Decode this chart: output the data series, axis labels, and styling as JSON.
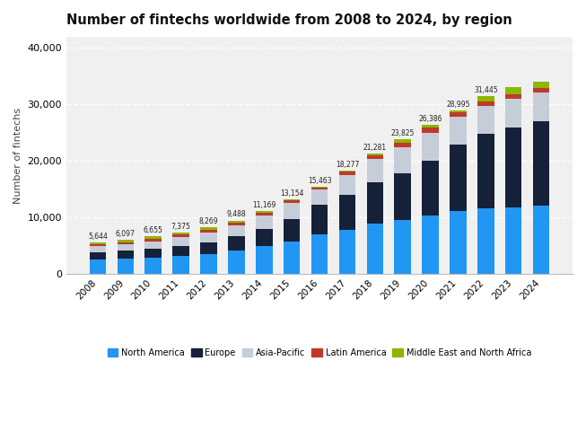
{
  "years": [
    2008,
    2009,
    2010,
    2011,
    2012,
    2013,
    2014,
    2015,
    2016,
    2017,
    2018,
    2019,
    2020,
    2021,
    2022,
    2023,
    2024
  ],
  "totals_labels": [
    "5,644",
    "6,097",
    "6,655",
    "7,375",
    "8,269",
    "9,488",
    "11,169",
    "13,154",
    "15,463",
    "18,277",
    "21,281",
    "23,825",
    "26,386",
    "28,995",
    "31,445",
    null,
    null
  ],
  "north_america": [
    2550,
    2750,
    2900,
    3150,
    3600,
    4100,
    4900,
    5800,
    7000,
    7800,
    9000,
    9500,
    10400,
    11100,
    11600,
    11800,
    12100
  ],
  "europe": [
    1300,
    1400,
    1550,
    1750,
    2050,
    2550,
    3100,
    3900,
    5200,
    6200,
    7300,
    8400,
    9600,
    11800,
    13200,
    14200,
    15000
  ],
  "asia_pacific": [
    1100,
    1150,
    1350,
    1600,
    1700,
    1950,
    2400,
    2850,
    2700,
    3500,
    4000,
    4500,
    5000,
    5000,
    5000,
    5100,
    5100
  ],
  "latin_america": [
    350,
    380,
    450,
    475,
    550,
    550,
    500,
    450,
    360,
    580,
    720,
    800,
    900,
    800,
    750,
    700,
    700
  ],
  "mena": [
    344,
    417,
    405,
    400,
    369,
    338,
    269,
    154,
    203,
    197,
    261,
    625,
    486,
    295,
    895,
    1245,
    1145
  ],
  "colors": {
    "north_america": "#2196f3",
    "europe": "#152039",
    "asia_pacific": "#c5cdd8",
    "latin_america": "#c0392b",
    "mena": "#8db600"
  },
  "title": "Number of fintechs worldwide from 2008 to 2024, by region",
  "ylabel": "Number of fintechs",
  "ylim": [
    0,
    42000
  ],
  "yticks": [
    0,
    10000,
    20000,
    30000,
    40000
  ],
  "legend_labels": [
    "North America",
    "Europe",
    "Asia-Pacific",
    "Latin America",
    "Middle East and North Africa"
  ],
  "background_color": "#ffffff",
  "plot_background": "#f0f0f0"
}
